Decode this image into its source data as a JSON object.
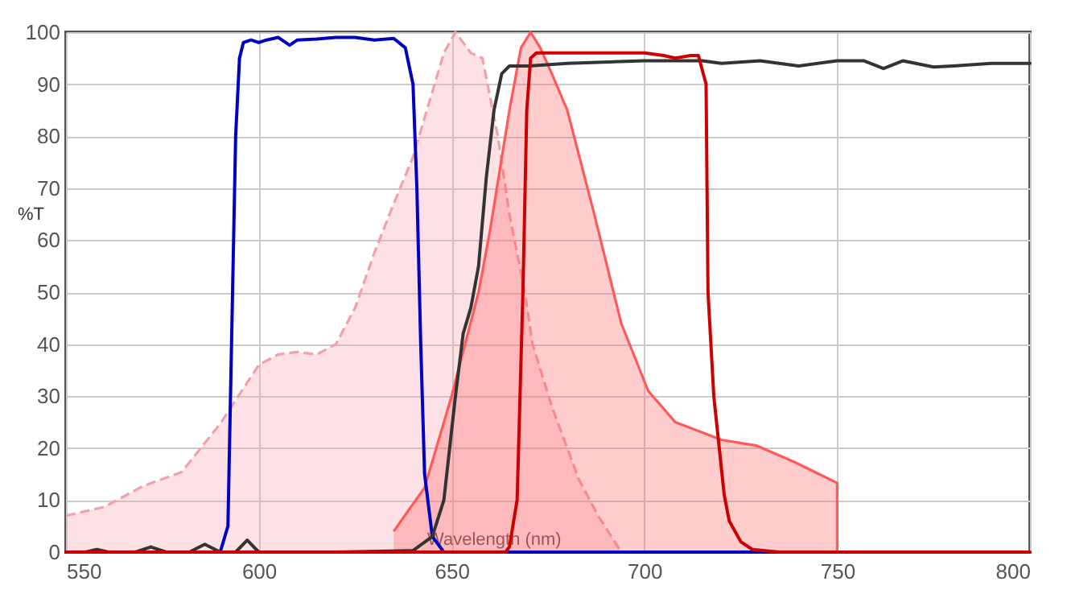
{
  "chart_data": {
    "type": "line",
    "xlabel": "Wavelength (nm)",
    "ylabel": "%T",
    "xlim": [
      550,
      800
    ],
    "ylim": [
      0,
      100
    ],
    "xticks": [
      550,
      600,
      650,
      700,
      750,
      800
    ],
    "yticks": [
      0,
      10,
      20,
      30,
      40,
      50,
      60,
      70,
      80,
      90,
      100
    ],
    "grid": true,
    "series": [
      {
        "type": "area",
        "color": "#f4a0a8",
        "line_style": "dashed",
        "x": [
          550,
          560,
          570,
          580,
          590,
          600,
          605,
          610,
          615,
          620,
          625,
          630,
          635,
          640,
          645,
          648,
          651,
          655,
          658,
          662,
          665,
          669,
          671,
          676,
          683,
          688,
          694
        ],
        "values": [
          7,
          8.7,
          12.7,
          15.4,
          24.7,
          36,
          38,
          38.5,
          38,
          40,
          47,
          57.6,
          67,
          76,
          88.5,
          96,
          100,
          96,
          95,
          80,
          65,
          50,
          40,
          28,
          14,
          7,
          0
        ]
      },
      {
        "type": "area",
        "color": "#ff5a5a",
        "line_style": "solid",
        "x": [
          635,
          643,
          650,
          657,
          660,
          665,
          668,
          670.5,
          673,
          676,
          680,
          687,
          694,
          701,
          708,
          720,
          729,
          739,
          750,
          750
        ],
        "values": [
          4,
          12.4,
          30,
          50,
          62,
          85,
          97,
          100,
          97,
          92,
          85,
          65,
          44,
          31,
          25,
          21.6,
          20.5,
          17.3,
          13.3,
          0
        ]
      },
      {
        "color": "#0000c0",
        "line_style": "solid",
        "x": [
          550,
          590,
          592,
          594,
          595,
          596,
          598,
          600,
          602,
          605,
          608,
          610,
          615,
          620,
          625,
          630,
          635,
          638,
          640,
          641,
          642,
          643,
          645,
          648,
          735
        ],
        "values": [
          0,
          0,
          5,
          80,
          95,
          98,
          98.5,
          98,
          98.5,
          99,
          97.5,
          98.5,
          98.7,
          99,
          99,
          98.5,
          98.8,
          97,
          90,
          70,
          40,
          15,
          3,
          0,
          0
        ]
      },
      {
        "color": "#333333",
        "line_style": "solid",
        "x": [
          550,
          555,
          558,
          561,
          568,
          572,
          576,
          582,
          586,
          590,
          594,
          597,
          600,
          620,
          640,
          645,
          648,
          651,
          653,
          655,
          657,
          659,
          661,
          663,
          665,
          670,
          680,
          700,
          715,
          720,
          730,
          740,
          750,
          757,
          762,
          767,
          775,
          780,
          790,
          800
        ],
        "values": [
          0,
          0,
          0.5,
          0,
          0,
          1,
          0,
          0,
          1.5,
          0,
          0,
          2.3,
          0,
          0,
          0.3,
          3,
          10,
          30,
          42,
          47,
          55,
          72,
          85,
          92,
          93.5,
          93.5,
          94,
          94.5,
          94.5,
          94,
          94.5,
          93.5,
          94.5,
          94.5,
          93,
          94.5,
          93.3,
          93.5,
          94,
          94
        ]
      },
      {
        "color": "#cc0000",
        "line_style": "solid",
        "x": [
          550,
          664,
          665,
          667,
          668.5,
          669.5,
          670.5,
          672,
          680,
          690,
          700,
          705,
          708,
          712,
          714,
          716,
          716.5,
          718,
          720.7,
          722,
          725,
          728,
          735,
          800
        ],
        "values": [
          0,
          0,
          1,
          10,
          50,
          85,
          95,
          96,
          96,
          96,
          96,
          95.5,
          95,
          95.5,
          95.5,
          90,
          50,
          30,
          11,
          6,
          2,
          0.5,
          0,
          0
        ]
      }
    ]
  }
}
